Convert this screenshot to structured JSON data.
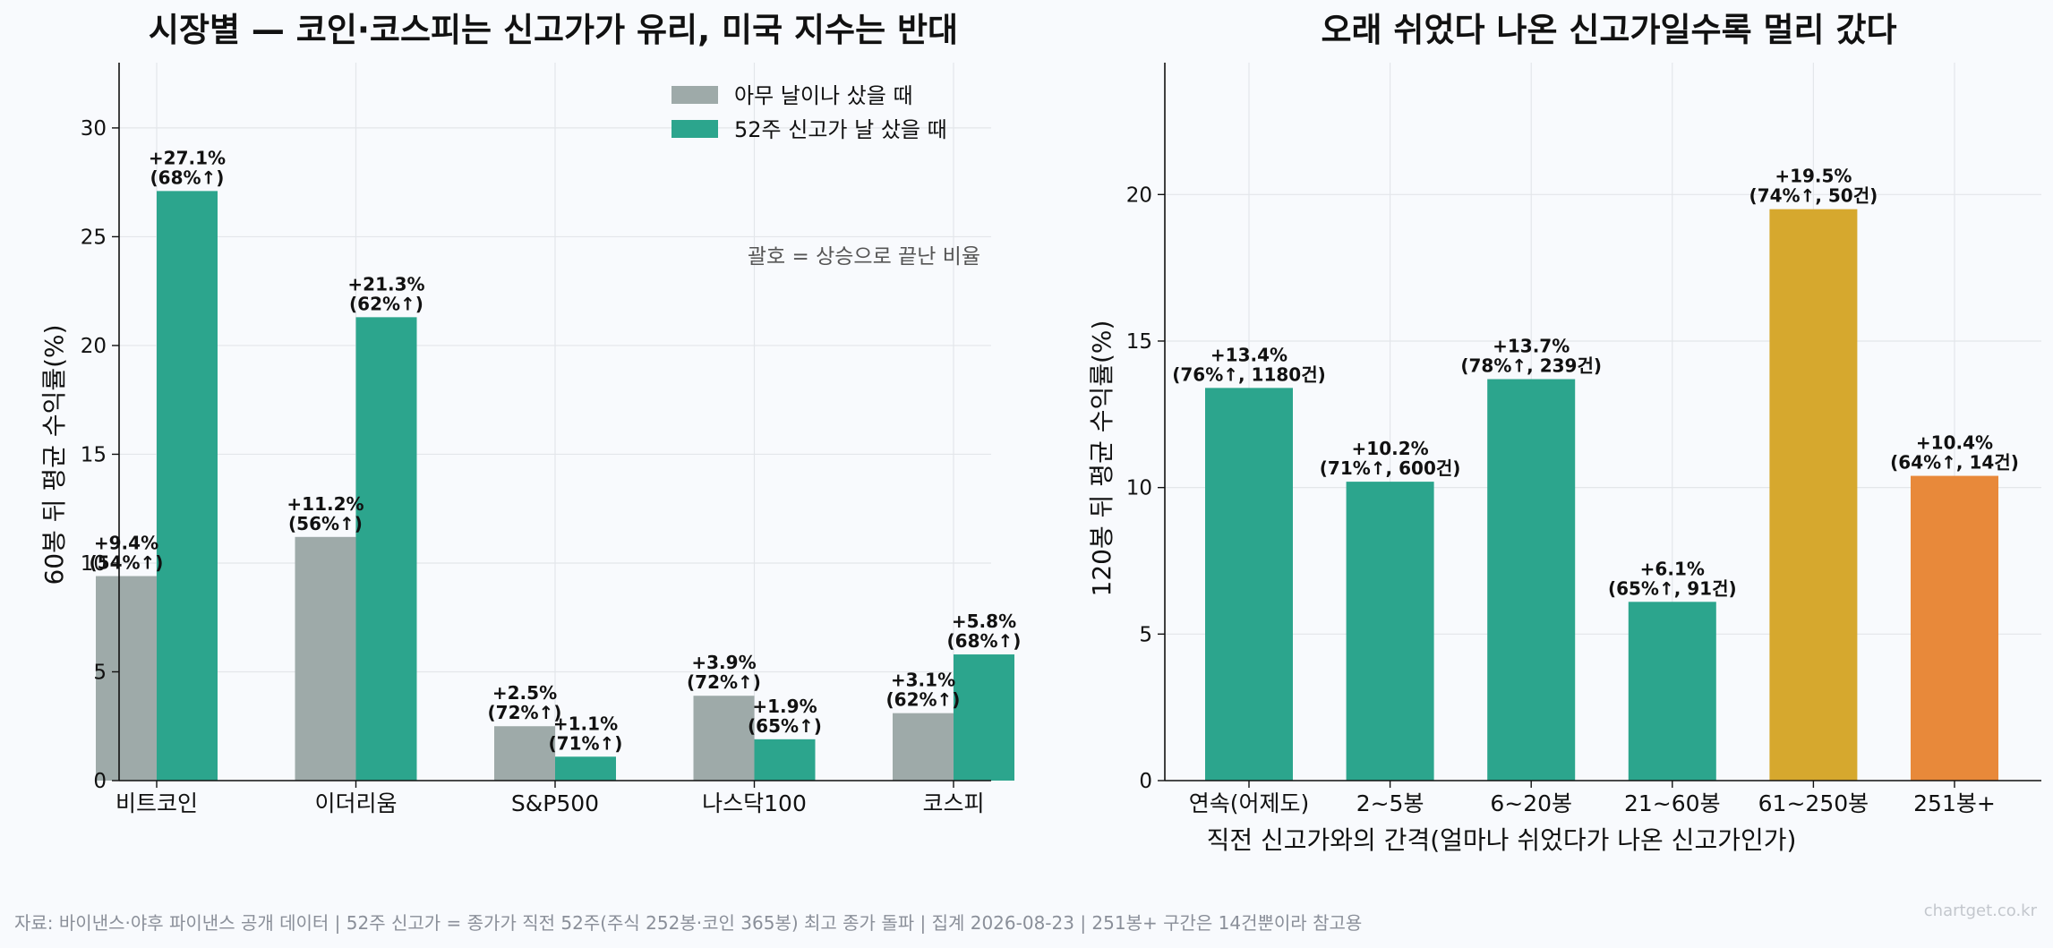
{
  "colors": {
    "base": "#9eaaa9",
    "high": "#2ca58d",
    "gold": "#d6a82e",
    "orange": "#e8893a"
  },
  "chart_data": [
    {
      "type": "bar",
      "title": "시장별 — 코인·코스피는 신고가가 유리, 미국 지수는 반대",
      "xlabel": "",
      "ylabel": "60봉 뒤 평균 수익률(%)",
      "ylim": [
        0,
        33
      ],
      "yticks": [
        0,
        5,
        10,
        15,
        20,
        25,
        30
      ],
      "grid": true,
      "legend": "top-right",
      "annotation": "괄호 = 상승으로 끝난 비율",
      "categories": [
        "비트코인",
        "이더리움",
        "S&P500",
        "나스닥100",
        "코스피"
      ],
      "series": [
        {
          "name": "아무 날이나 샀을 때",
          "color": "base",
          "values": [
            9.4,
            11.2,
            2.5,
            3.9,
            3.1
          ],
          "labels": [
            [
              "+9.4%",
              "(54%↑)"
            ],
            [
              "+11.2%",
              "(56%↑)"
            ],
            [
              "+2.5%",
              "(72%↑)"
            ],
            [
              "+3.9%",
              "(72%↑)"
            ],
            [
              "+3.1%",
              "(62%↑)"
            ]
          ]
        },
        {
          "name": "52주 신고가 날 샀을 때",
          "color": "high",
          "values": [
            27.1,
            21.3,
            1.1,
            1.9,
            5.8
          ],
          "labels": [
            [
              "+27.1%",
              "(68%↑)"
            ],
            [
              "+21.3%",
              "(62%↑)"
            ],
            [
              "+1.1%",
              "(71%↑)"
            ],
            [
              "+1.9%",
              "(65%↑)"
            ],
            [
              "+5.8%",
              "(68%↑)"
            ]
          ]
        }
      ]
    },
    {
      "type": "bar",
      "title": "오래 쉬었다 나온 신고가일수록 멀리 갔다",
      "xlabel": "직전 신고가와의 간격(얼마나 쉬었다가 나온 신고가인가)",
      "ylabel": "120봉 뒤 평균 수익률(%)",
      "ylim": [
        0,
        24.5
      ],
      "yticks": [
        0,
        5,
        10,
        15,
        20
      ],
      "grid": true,
      "categories": [
        "연속(어제도)",
        "2~5봉",
        "6~20봉",
        "21~60봉",
        "61~250봉",
        "251봉+"
      ],
      "values": [
        13.4,
        10.2,
        13.7,
        6.1,
        19.5,
        10.4
      ],
      "bar_colors": [
        "high",
        "high",
        "high",
        "high",
        "gold",
        "orange"
      ],
      "labels": [
        [
          "+13.4%",
          "(76%↑, 1180건)"
        ],
        [
          "+10.2%",
          "(71%↑, 600건)"
        ],
        [
          "+13.7%",
          "(78%↑, 239건)"
        ],
        [
          "+6.1%",
          "(65%↑, 91건)"
        ],
        [
          "+19.5%",
          "(74%↑, 50건)"
        ],
        [
          "+10.4%",
          "(64%↑, 14건)"
        ]
      ]
    }
  ],
  "footer": "자료: 바이낸스·야후 파이낸스 공개 데이터 | 52주 신고가 = 종가가 직전 52주(주식 252봉·코인 365봉) 최고 종가 돌파 | 집계 2026-08-23 | 251봉+ 구간은 14건뿐이라 참고용",
  "watermark": "chartget.co.kr"
}
